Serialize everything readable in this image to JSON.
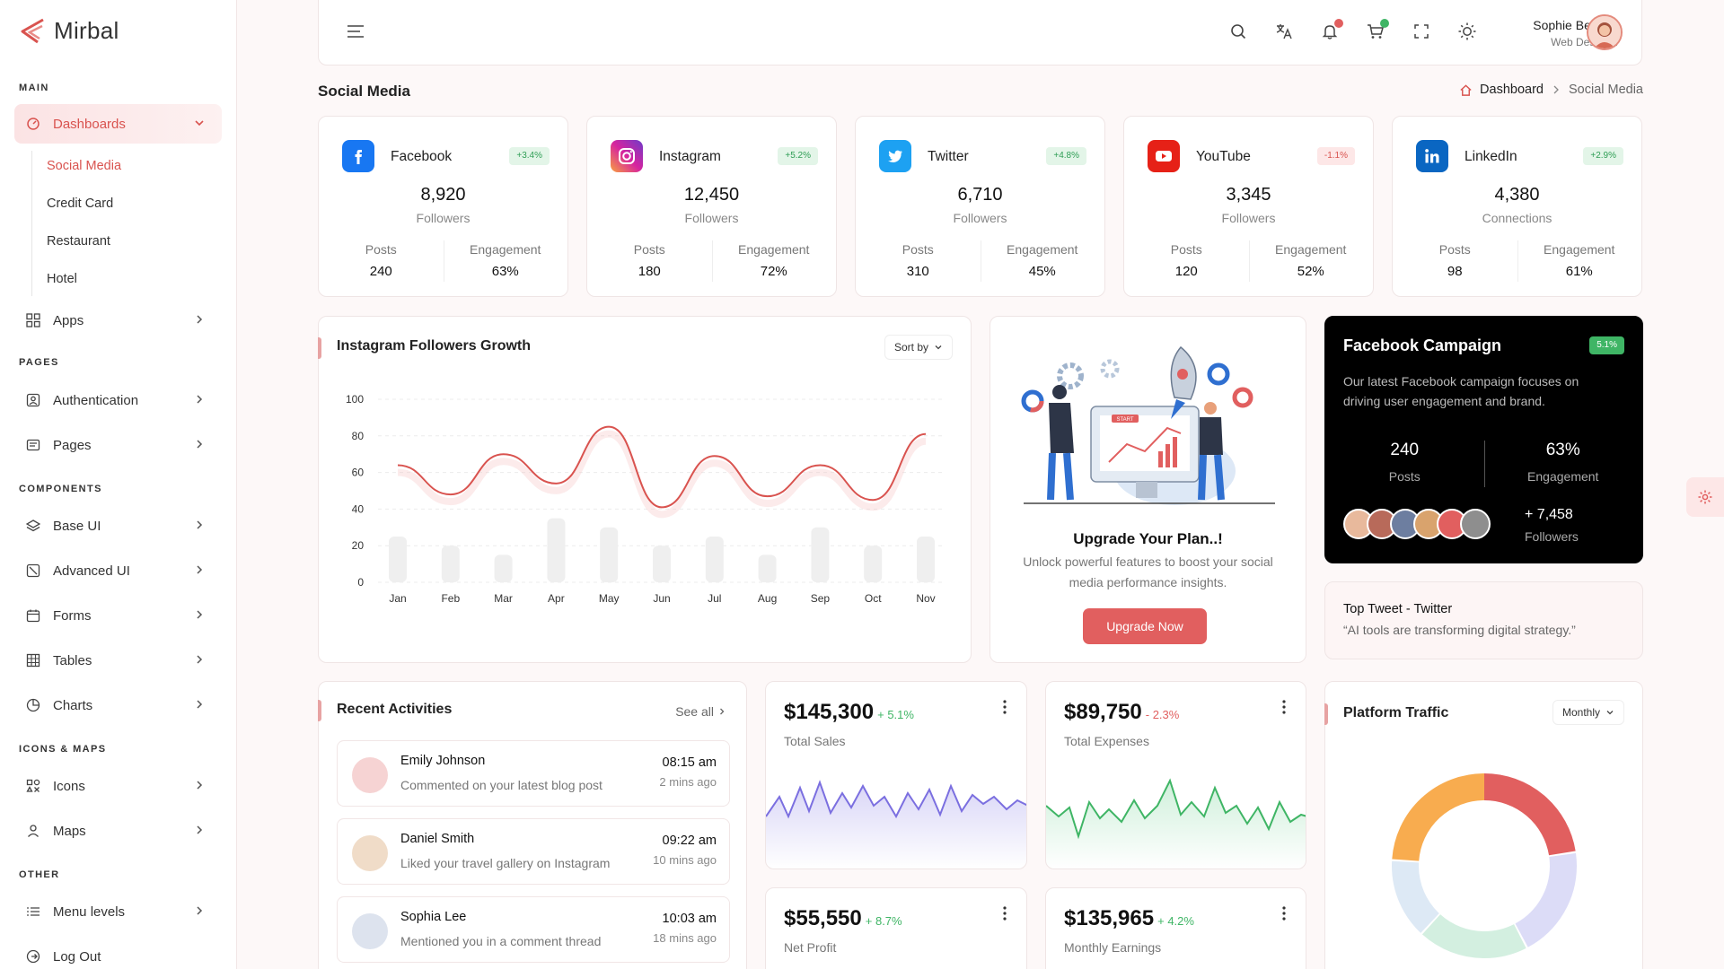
{
  "brand": {
    "name": "Mirbal",
    "accent": "#d9534f"
  },
  "sidebar": {
    "sections": {
      "main": "MAIN",
      "pages": "PAGES",
      "components": "COMPONENTS",
      "icons_maps": "ICONS & MAPS",
      "other": "OTHER"
    },
    "dashboards": "Dashboards",
    "dashboard_sub": [
      "Social Media",
      "Credit Card",
      "Restaurant",
      "Hotel"
    ],
    "apps": "Apps",
    "authentication": "Authentication",
    "pages": "Pages",
    "base_ui": "Base UI",
    "advanced_ui": "Advanced UI",
    "forms": "Forms",
    "tables": "Tables",
    "charts": "Charts",
    "icons": "Icons",
    "maps": "Maps",
    "menu_levels": "Menu levels",
    "logout": "Log Out"
  },
  "header": {
    "user_name": "Sophie Bennett",
    "user_role": "Web Designer"
  },
  "page": {
    "title": "Social Media",
    "breadcrumb_home": "Dashboard",
    "breadcrumb_current": "Social Media"
  },
  "socials": [
    {
      "name": "Facebook",
      "badge": "+3.4%",
      "value": "8,920",
      "unit": "Followers",
      "posts_label": "Posts",
      "posts": "240",
      "eng_label": "Engagement",
      "engagement": "63%",
      "color": "#1877f2",
      "icon": "facebook-icon"
    },
    {
      "name": "Instagram",
      "badge": "+5.2%",
      "value": "12,450",
      "unit": "Followers",
      "posts_label": "Posts",
      "posts": "180",
      "eng_label": "Engagement",
      "engagement": "72%",
      "color": "#d6249f",
      "icon": "instagram-icon"
    },
    {
      "name": "Twitter",
      "badge": "+4.8%",
      "value": "6,710",
      "unit": "Followers",
      "posts_label": "Posts",
      "posts": "310",
      "eng_label": "Engagement",
      "engagement": "45%",
      "color": "#1da1f2",
      "icon": "twitter-icon"
    },
    {
      "name": "YouTube",
      "badge": "-1.1%",
      "value": "3,345",
      "unit": "Followers",
      "posts_label": "Posts",
      "posts": "120",
      "eng_label": "Engagement",
      "engagement": "52%",
      "color": "#e62117",
      "icon": "youtube-icon"
    },
    {
      "name": "LinkedIn",
      "badge": "+2.9%",
      "value": "4,380",
      "unit": "Connections",
      "posts_label": "Posts",
      "posts": "98",
      "eng_label": "Engagement",
      "engagement": "61%",
      "color": "#0a66c2",
      "icon": "linkedin-icon"
    }
  ],
  "growth": {
    "title": "Instagram Followers Growth",
    "sort_label": "Sort by"
  },
  "chart_data": {
    "type": "line",
    "categories": [
      "Jan",
      "Feb",
      "Mar",
      "Apr",
      "May",
      "Jun",
      "Jul",
      "Aug",
      "Sep",
      "Oct",
      "Nov"
    ],
    "series": [
      {
        "values": [
          64,
          48,
          70,
          54,
          85,
          41,
          69,
          47,
          64,
          45,
          81
        ]
      },
      {
        "values": [
          25,
          20,
          15,
          35,
          30,
          20,
          25,
          15,
          30,
          20,
          25
        ]
      }
    ],
    "ylim": [
      0,
      100
    ],
    "yticks": [
      0,
      20,
      40,
      60,
      80,
      100
    ],
    "colors": {
      "line": "#d9534f",
      "bars": "#efefef"
    }
  },
  "upgrade": {
    "title": "Upgrade Your Plan..!",
    "text1": "Unlock powerful features to boost your social",
    "text2": "media performance insights.",
    "button": "Upgrade Now",
    "illustration_label": "START"
  },
  "campaign": {
    "title": "Facebook Campaign",
    "badge": "5.1%",
    "desc1": "Our latest Facebook campaign focuses on",
    "desc2": "driving user engagement and brand.",
    "posts": "240",
    "posts_label": "Posts",
    "engagement": "63%",
    "engagement_label": "Engagement",
    "followers": "+ 7,458",
    "followers_label": "Followers"
  },
  "top_tweet": {
    "title": "Top Tweet - Twitter",
    "text": "“AI tools are transforming digital strategy.”"
  },
  "activities": {
    "title": "Recent Activities",
    "see_all": "See all",
    "items": [
      {
        "name": "Emily Johnson",
        "msg": "Commented on your latest blog post",
        "time": "08:15 am",
        "ago": "2 mins ago"
      },
      {
        "name": "Daniel Smith",
        "msg": "Liked your travel gallery on Instagram",
        "time": "09:22 am",
        "ago": "10 mins ago"
      },
      {
        "name": "Sophia Lee",
        "msg": "Mentioned you in a comment thread",
        "time": "10:03 am",
        "ago": "18 mins ago"
      }
    ]
  },
  "kpis": [
    {
      "value": "$145,300",
      "pct": "+ 5.1%",
      "label": "Total Sales",
      "trend": "up"
    },
    {
      "value": "$89,750",
      "pct": "- 2.3%",
      "label": "Total Expenses",
      "trend": "down"
    },
    {
      "value": "$55,550",
      "pct": "+ 8.7%",
      "label": "Net Profit",
      "trend": "up"
    },
    {
      "value": "$135,965",
      "pct": "+ 4.2%",
      "label": "Monthly Earnings",
      "trend": "up"
    }
  ],
  "traffic": {
    "title": "Platform Traffic",
    "period": "Monthly"
  }
}
